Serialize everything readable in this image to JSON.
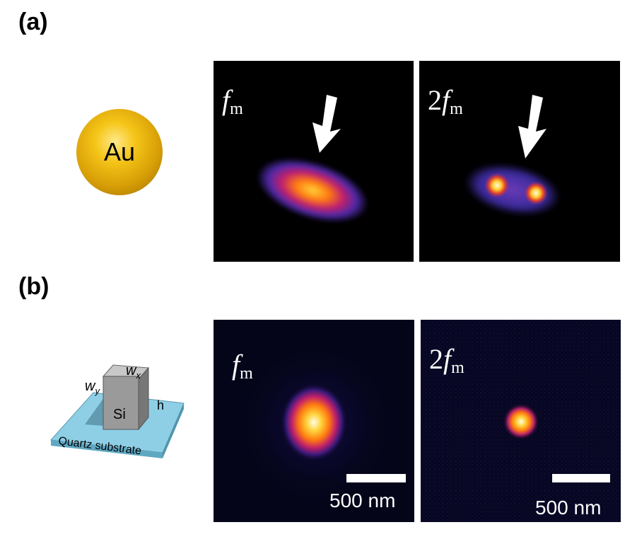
{
  "panels": {
    "a": {
      "label": "(a)",
      "particle_text": "Au",
      "images": [
        {
          "mod_prefix": "",
          "mod_symbol": "f",
          "mod_sub": "m"
        },
        {
          "mod_prefix": "2",
          "mod_symbol": "f",
          "mod_sub": "m"
        }
      ]
    },
    "b": {
      "label": "(b)",
      "schematic": {
        "wy": "w",
        "wy_sub": "y",
        "wx": "w",
        "wx_sub": "x",
        "h": "h",
        "block": "Si",
        "substrate": "Quartz substrate"
      },
      "images": [
        {
          "mod_prefix": "",
          "mod_symbol": "f",
          "mod_sub": "m",
          "scale_text": "500 nm"
        },
        {
          "mod_prefix": "2",
          "mod_symbol": "f",
          "mod_sub": "m",
          "scale_text": "500 nm"
        }
      ]
    }
  },
  "colors": {
    "au_gold": "#f5c518",
    "substrate": "#7ec8e3",
    "si_block": "#9a9a9a",
    "heatmap_hot": "#ffffff",
    "heatmap_mid": "#ff7a10",
    "heatmap_low": "#4e2aa8"
  }
}
